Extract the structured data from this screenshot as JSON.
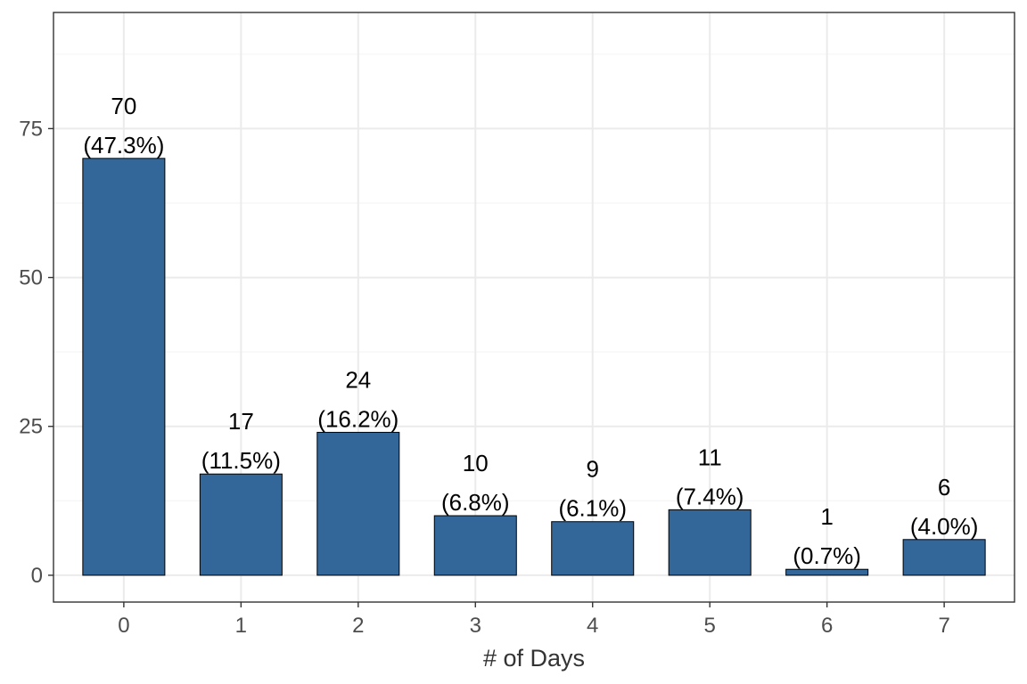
{
  "chart_data": {
    "type": "bar",
    "title": "",
    "xlabel": "# of Days",
    "ylabel": "",
    "categories": [
      "0",
      "1",
      "2",
      "3",
      "4",
      "5",
      "6",
      "7"
    ],
    "values": [
      70,
      17,
      24,
      10,
      9,
      11,
      1,
      6
    ],
    "data_labels": [
      {
        "count": "70",
        "percent": "(47.3%)"
      },
      {
        "count": "17",
        "percent": "(11.5%)"
      },
      {
        "count": "24",
        "percent": "(16.2%)"
      },
      {
        "count": "10",
        "percent": "(6.8%)"
      },
      {
        "count": "9",
        "percent": "(6.1%)"
      },
      {
        "count": "11",
        "percent": "(7.4%)"
      },
      {
        "count": "1",
        "percent": "(0.7%)"
      },
      {
        "count": "6",
        "percent": "(4.0%)"
      }
    ],
    "y_ticks": [
      0,
      25,
      50,
      75
    ],
    "ylim": [
      -4.5,
      94.5
    ],
    "grid": true,
    "legend": "none",
    "colors": {
      "bar_fill": "#336699",
      "bar_stroke": "#000000",
      "grid_major": "#ebebeb",
      "grid_minor": "#f5f5f5",
      "panel_border": "#333333"
    }
  }
}
